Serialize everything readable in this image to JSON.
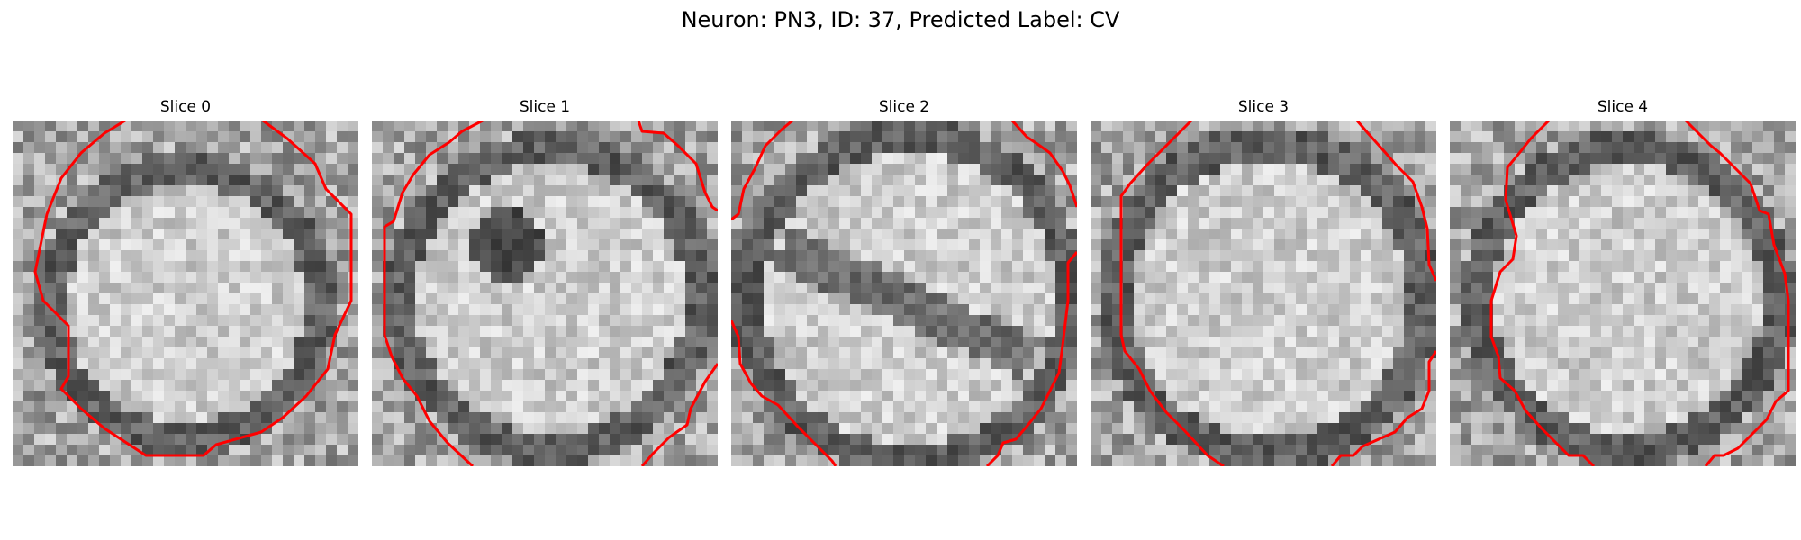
{
  "figure": {
    "title": "Neuron: PN3, ID: 37, Predicted Label: CV",
    "contour_color": "#ff0000",
    "colormap": "grayscale",
    "grid_size": 32
  },
  "slices": [
    {
      "title": "Slice 0"
    },
    {
      "title": "Slice 1"
    },
    {
      "title": "Slice 2"
    },
    {
      "title": "Slice 3"
    },
    {
      "title": "Slice 4"
    }
  ]
}
